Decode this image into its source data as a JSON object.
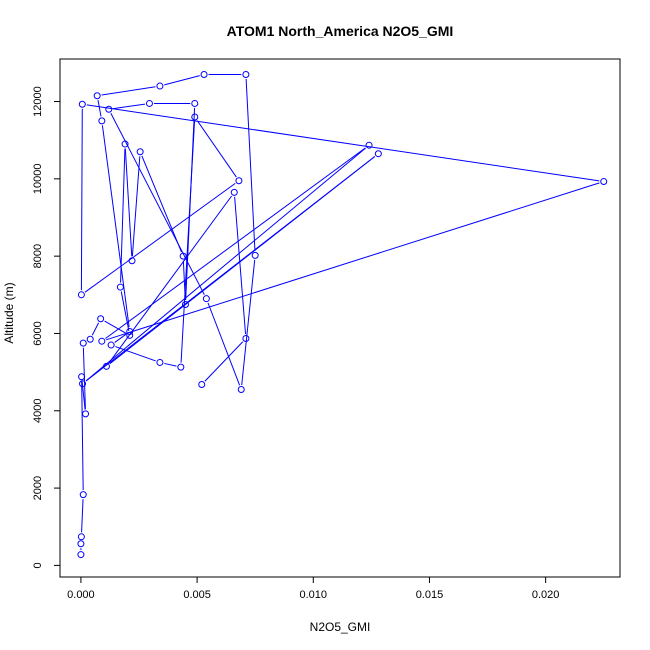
{
  "chart_data": {
    "type": "line",
    "title": "ATOM1 North_America N2O5_GMI",
    "xlabel": "N2O5_GMI",
    "ylabel": "Altitude (m)",
    "xlim": [
      -0.0009,
      0.0232
    ],
    "ylim": [
      -300,
      13100
    ],
    "xticks": [
      0.0,
      0.005,
      0.01,
      0.015,
      0.02
    ],
    "xtick_labels": [
      "0.000",
      "0.005",
      "0.010",
      "0.015",
      "0.020"
    ],
    "yticks": [
      0,
      2000,
      4000,
      6000,
      8000,
      10000,
      12000
    ],
    "ytick_labels": [
      "0",
      "2000",
      "4000",
      "6000",
      "8000",
      "10000",
      "12000"
    ],
    "series": [
      {
        "color": "#0000ff",
        "x": [
          0.0,
          0.0,
          2e-05,
          0.0001,
          3e-05,
          0.0002,
          0.0001,
          0.0004,
          0.00085,
          0.0021,
          0.0017,
          0.0019,
          0.0022,
          0.00255,
          0.0044,
          0.0045,
          0.0049,
          0.00295,
          0.0012,
          0.0054,
          0.0069,
          0.0075,
          0.0071,
          0.0053,
          0.0034,
          0.0007,
          0.0009,
          0.0021,
          0.0013,
          0.0034,
          0.0043,
          0.0049,
          0.0068,
          2e-05,
          6e-05,
          0.0225,
          0.0009,
          0.0124,
          7e-05,
          0.0128,
          0.0011,
          0.0066,
          0.0071,
          0.0052
        ],
        "y": [
          280,
          560,
          740,
          1830,
          4880,
          3920,
          5750,
          5850,
          6380,
          5950,
          7200,
          10900,
          7880,
          10700,
          8000,
          6750,
          11950,
          11950,
          11800,
          6900,
          4550,
          8020,
          12700,
          12700,
          12400,
          12150,
          11500,
          6050,
          5700,
          5250,
          5130,
          11600,
          9950,
          7000,
          11930,
          9930,
          5800,
          10870,
          4700,
          10650,
          5150,
          9650,
          5870,
          4680
        ]
      }
    ]
  }
}
